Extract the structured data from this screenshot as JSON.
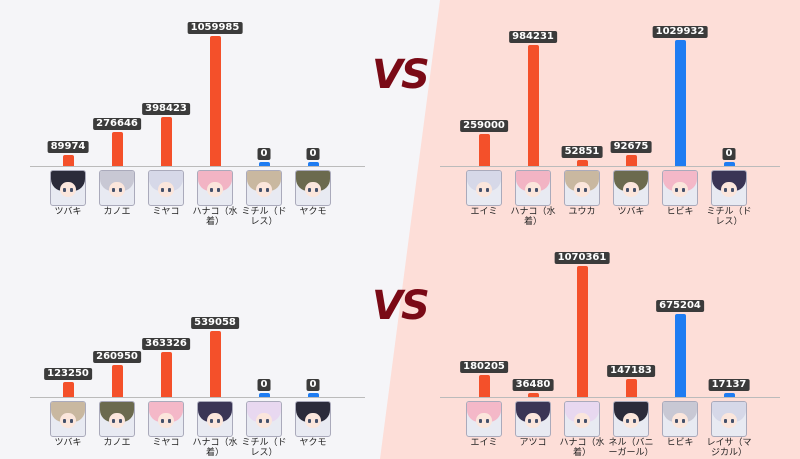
{
  "vs_label": "VS",
  "colors": {
    "orange": "#f4502a",
    "blue": "#1e7cf2",
    "label_bg": "#3b3b3b"
  },
  "chart_data": [
    {
      "type": "bar",
      "position": "top-left",
      "categories": [
        "ツバキ",
        "カノエ",
        "ミヤコ",
        "ハナコ（水着）",
        "ミチル（ドレス）",
        "ヤクモ"
      ],
      "values": [
        89974,
        276646,
        398423,
        1059985,
        0,
        0
      ],
      "bar_colors": [
        "orange",
        "orange",
        "orange",
        "orange",
        "blue",
        "blue"
      ],
      "avatar_icons": [
        "tsubaki-avatar-icon",
        "kanoe-avatar-icon",
        "miyako-avatar-icon",
        "hanako-swimsuit-avatar-icon",
        "michiru-dress-avatar-icon",
        "yakumo-avatar-icon"
      ],
      "ylim": [
        0,
        1100000
      ]
    },
    {
      "type": "bar",
      "position": "top-right",
      "categories": [
        "エイミ",
        "ハナコ（水着）",
        "ユウカ",
        "ツバキ",
        "ヒビキ",
        "ミチル（ドレス）"
      ],
      "values": [
        259000,
        984231,
        52851,
        92675,
        1029932,
        0
      ],
      "bar_colors": [
        "orange",
        "orange",
        "orange",
        "orange",
        "blue",
        "blue"
      ],
      "avatar_icons": [
        "eimi-avatar-icon",
        "hanako-swimsuit-avatar-icon",
        "yuuka-avatar-icon",
        "tsubaki-avatar-icon",
        "hibiki-avatar-icon",
        "michiru-dress-avatar-icon"
      ],
      "ylim": [
        0,
        1100000
      ]
    },
    {
      "type": "bar",
      "position": "bottom-left",
      "categories": [
        "ツバキ",
        "カノエ",
        "ミヤコ",
        "ハナコ（水着）",
        "ミチル（ドレス）",
        "ヤクモ"
      ],
      "values": [
        123250,
        260950,
        363326,
        539058,
        0,
        0
      ],
      "bar_colors": [
        "orange",
        "orange",
        "orange",
        "orange",
        "blue",
        "blue"
      ],
      "avatar_icons": [
        "tsubaki-avatar-icon",
        "kanoe-avatar-icon",
        "miyako-avatar-icon",
        "hanako-swimsuit-avatar-icon",
        "michiru-dress-avatar-icon",
        "yakumo-avatar-icon"
      ],
      "ylim": [
        0,
        1100000
      ]
    },
    {
      "type": "bar",
      "position": "bottom-right",
      "categories": [
        "エイミ",
        "アツコ",
        "ハナコ（水着）",
        "ネル（バニーガール）",
        "ヒビキ",
        "レイサ（マジカル）"
      ],
      "values": [
        180205,
        36480,
        1070361,
        147183,
        675204,
        17137
      ],
      "bar_colors": [
        "orange",
        "orange",
        "orange",
        "orange",
        "blue",
        "blue"
      ],
      "avatar_icons": [
        "eimi-avatar-icon",
        "atsuko-avatar-icon",
        "hanako-swimsuit-avatar-icon",
        "neru-bunny-avatar-icon",
        "hibiki-avatar-icon",
        "reisa-magical-avatar-icon"
      ],
      "ylim": [
        0,
        1100000
      ]
    }
  ]
}
